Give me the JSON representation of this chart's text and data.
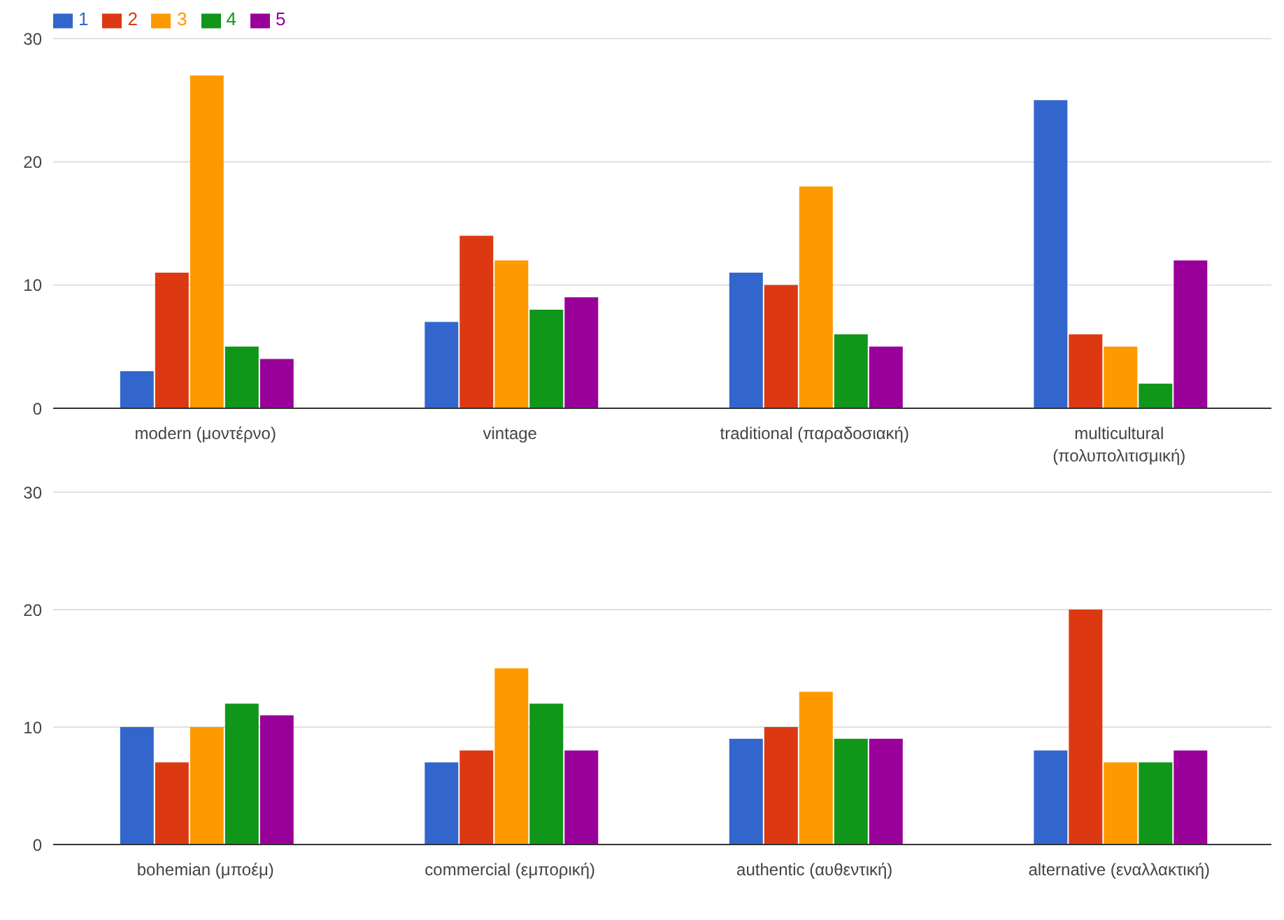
{
  "chart_data": [
    {
      "type": "bar",
      "categories": [
        "modern (μοντέρνο)",
        "vintage",
        "traditional (παραδοσιακή)",
        "multicultural (πολυπολιτισμική)"
      ],
      "series": [
        {
          "name": "1",
          "color": "#3366cc",
          "values": [
            3,
            7,
            11,
            25
          ]
        },
        {
          "name": "2",
          "color": "#dc3912",
          "values": [
            11,
            14,
            10,
            6
          ]
        },
        {
          "name": "3",
          "color": "#ff9900",
          "values": [
            27,
            12,
            18,
            5
          ]
        },
        {
          "name": "4",
          "color": "#109618",
          "values": [
            5,
            8,
            6,
            2
          ]
        },
        {
          "name": "5",
          "color": "#990099",
          "values": [
            4,
            9,
            5,
            12
          ]
        }
      ],
      "ylim": [
        0,
        30
      ],
      "yticks": [
        0,
        10,
        20,
        30
      ],
      "grid": "y",
      "legend": "top left"
    },
    {
      "type": "bar",
      "categories": [
        "bohemian (μποέμ)",
        "commercial (εμπορική)",
        "authentic (αυθεντική)",
        "alternative (εναλλακτική)"
      ],
      "series": [
        {
          "name": "1",
          "color": "#3366cc",
          "values": [
            10,
            7,
            9,
            8
          ]
        },
        {
          "name": "2",
          "color": "#dc3912",
          "values": [
            7,
            8,
            10,
            20
          ]
        },
        {
          "name": "3",
          "color": "#ff9900",
          "values": [
            10,
            15,
            13,
            7
          ]
        },
        {
          "name": "4",
          "color": "#109618",
          "values": [
            12,
            12,
            9,
            7
          ]
        },
        {
          "name": "5",
          "color": "#990099",
          "values": [
            11,
            8,
            9,
            8
          ]
        }
      ],
      "ylim": [
        0,
        30
      ],
      "yticks": [
        0,
        10,
        20,
        30
      ],
      "grid": "y",
      "legend": false
    }
  ]
}
